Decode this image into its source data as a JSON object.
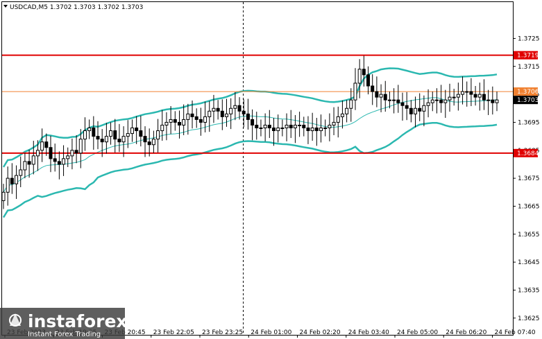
{
  "window": {
    "symbol_info": "USDCAD,M5  1.3702 1.3703 1.3702 1.3703"
  },
  "logo": {
    "brand": "instaforex",
    "tagline": "Instant Forex Trading"
  },
  "chart_data": {
    "type": "candlestick",
    "symbol": "USDCAD",
    "timeframe": "M5",
    "ohlc_header": {
      "open": 1.3702,
      "high": 1.3703,
      "low": 1.3702,
      "close": 1.3703
    },
    "ylim": [
      1.3619,
      1.3738
    ],
    "y_ticks": [
      "1.3725",
      "1.3715",
      "1.3705",
      "1.3695",
      "1.3685",
      "1.3675",
      "1.3665",
      "1.3655",
      "1.3645",
      "1.3635",
      "1.3625"
    ],
    "x_ticks": [
      "23 Feb 2023",
      "23 Feb 19:25",
      "23 Feb 20:45",
      "23 Feb 22:05",
      "23 Feb 23:25",
      "24 Feb 01:00",
      "24 Feb 02:20",
      "24 Feb 03:40",
      "24 Feb 05:00",
      "24 Feb 06:20",
      "24 Feb 07:40"
    ],
    "levels": [
      {
        "price": "1.3719",
        "color": "#e00000"
      },
      {
        "price": "1.3706",
        "color": "#f08030"
      },
      {
        "price": "1.3684",
        "color": "#e00000"
      }
    ],
    "current_price": "1.3703",
    "closes": [
      1.367,
      1.3675,
      1.3673,
      1.3676,
      1.3678,
      1.3681,
      1.368,
      1.3683,
      1.3685,
      1.3688,
      1.3686,
      1.3682,
      1.3681,
      1.368,
      1.3682,
      1.3683,
      1.3685,
      1.3684,
      1.3689,
      1.3692,
      1.3693,
      1.369,
      1.3689,
      1.3688,
      1.369,
      1.3692,
      1.3689,
      1.3688,
      1.369,
      1.3691,
      1.3693,
      1.3692,
      1.369,
      1.3688,
      1.3687,
      1.3689,
      1.3692,
      1.3694,
      1.3695,
      1.3696,
      1.3695,
      1.3694,
      1.3696,
      1.3698,
      1.3697,
      1.3696,
      1.3695,
      1.3697,
      1.3699,
      1.37,
      1.3699,
      1.3697,
      1.3698,
      1.37,
      1.3701,
      1.3699,
      1.3698,
      1.3696,
      1.3694,
      1.3693,
      1.3693,
      1.3694,
      1.3693,
      1.3692,
      1.3693,
      1.3693,
      1.3694,
      1.3693,
      1.3694,
      1.3694,
      1.3693,
      1.3692,
      1.3693,
      1.3692,
      1.3693,
      1.3693,
      1.3694,
      1.3695,
      1.3697,
      1.3698,
      1.37,
      1.3703,
      1.3709,
      1.3714,
      1.3712,
      1.3708,
      1.3706,
      1.3704,
      1.3705,
      1.3703,
      1.3703,
      1.3703,
      1.3702,
      1.3701,
      1.37,
      1.3698,
      1.37,
      1.3699,
      1.3701,
      1.3702,
      1.3703,
      1.3703,
      1.3702,
      1.3703,
      1.3704,
      1.3704,
      1.3705,
      1.3706,
      1.3706,
      1.3705,
      1.3704,
      1.3705,
      1.3703,
      1.3703,
      1.3702,
      1.3703
    ]
  }
}
